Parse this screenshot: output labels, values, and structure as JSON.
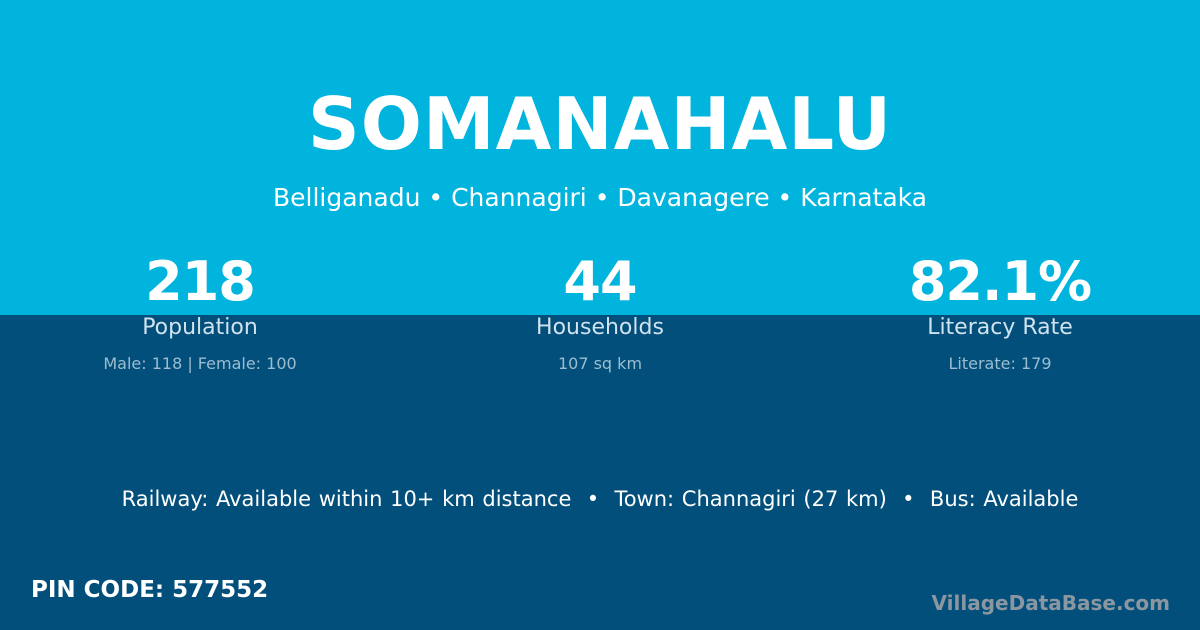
{
  "village": {
    "name": "SOMANAHALU",
    "breadcrumb": "Belliganadu • Channagiri • Davanagere • Karnataka"
  },
  "stats": [
    {
      "value": "218",
      "label": "Population",
      "detail": "Male: 118 | Female: 100"
    },
    {
      "value": "44",
      "label": "Households",
      "detail": "107 sq km"
    },
    {
      "value": "82.1%",
      "label": "Literacy Rate",
      "detail": "Literate: 179"
    }
  ],
  "amenities": "Railway: Available within 10+ km distance  •  Town: Channagiri (27 km)  •  Bus: Available",
  "pin": "PIN CODE: 577552",
  "brand": "VillageDataBase.com",
  "colors": {
    "top": "#01b4dd",
    "bottom": "#024f7b"
  }
}
